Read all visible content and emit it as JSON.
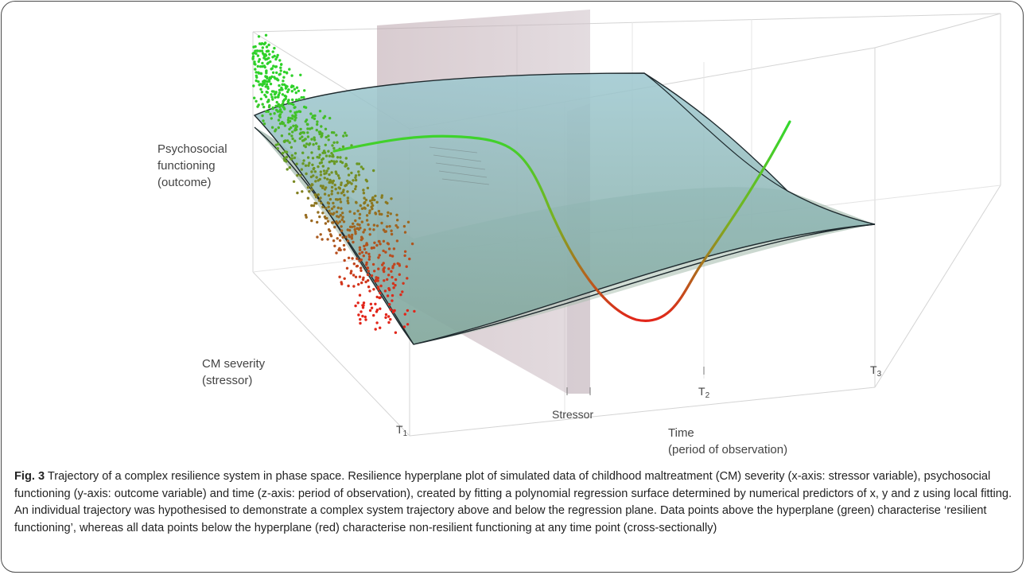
{
  "figure": {
    "axis_labels": {
      "y_line1": "Psychosocial",
      "y_line2": "functioning",
      "y_line3": "(outcome)",
      "x_line1": "CM severity",
      "x_line2": "(stressor)",
      "z_line1": "Time",
      "z_line2": "(period of observation)"
    },
    "markers": {
      "stressor": "Stressor",
      "t1": "T",
      "t1_sub": "1",
      "t2": "T",
      "t2_sub": "2",
      "t3": "T",
      "t3_sub": "3"
    },
    "colors": {
      "resilient": "#2fd12a",
      "non_resilient": "#e2251a",
      "plane": "#8fbfc4",
      "stressor_plane": "#c9b0b8"
    }
  },
  "caption": {
    "label": "Fig. 3",
    "text": " Trajectory of a complex resilience system in phase space. Resilience hyperplane plot of simulated data of childhood maltreatment (CM) severity (x-axis: stressor variable), psychosocial functioning (y-axis: outcome variable) and time (z-axis: period of observation), created by fitting a polynomial regression surface determined by numerical predictors of x, y and z using local fitting. An individual trajectory was hypothesised to demonstrate a complex system trajectory above and below the regression plane. Data points above the hyperplane (green) characterise ‘resilient functioning’, whereas all data points below the hyperplane (red) characterise non-resilient functioning at any time point (cross-sectionally)"
  }
}
